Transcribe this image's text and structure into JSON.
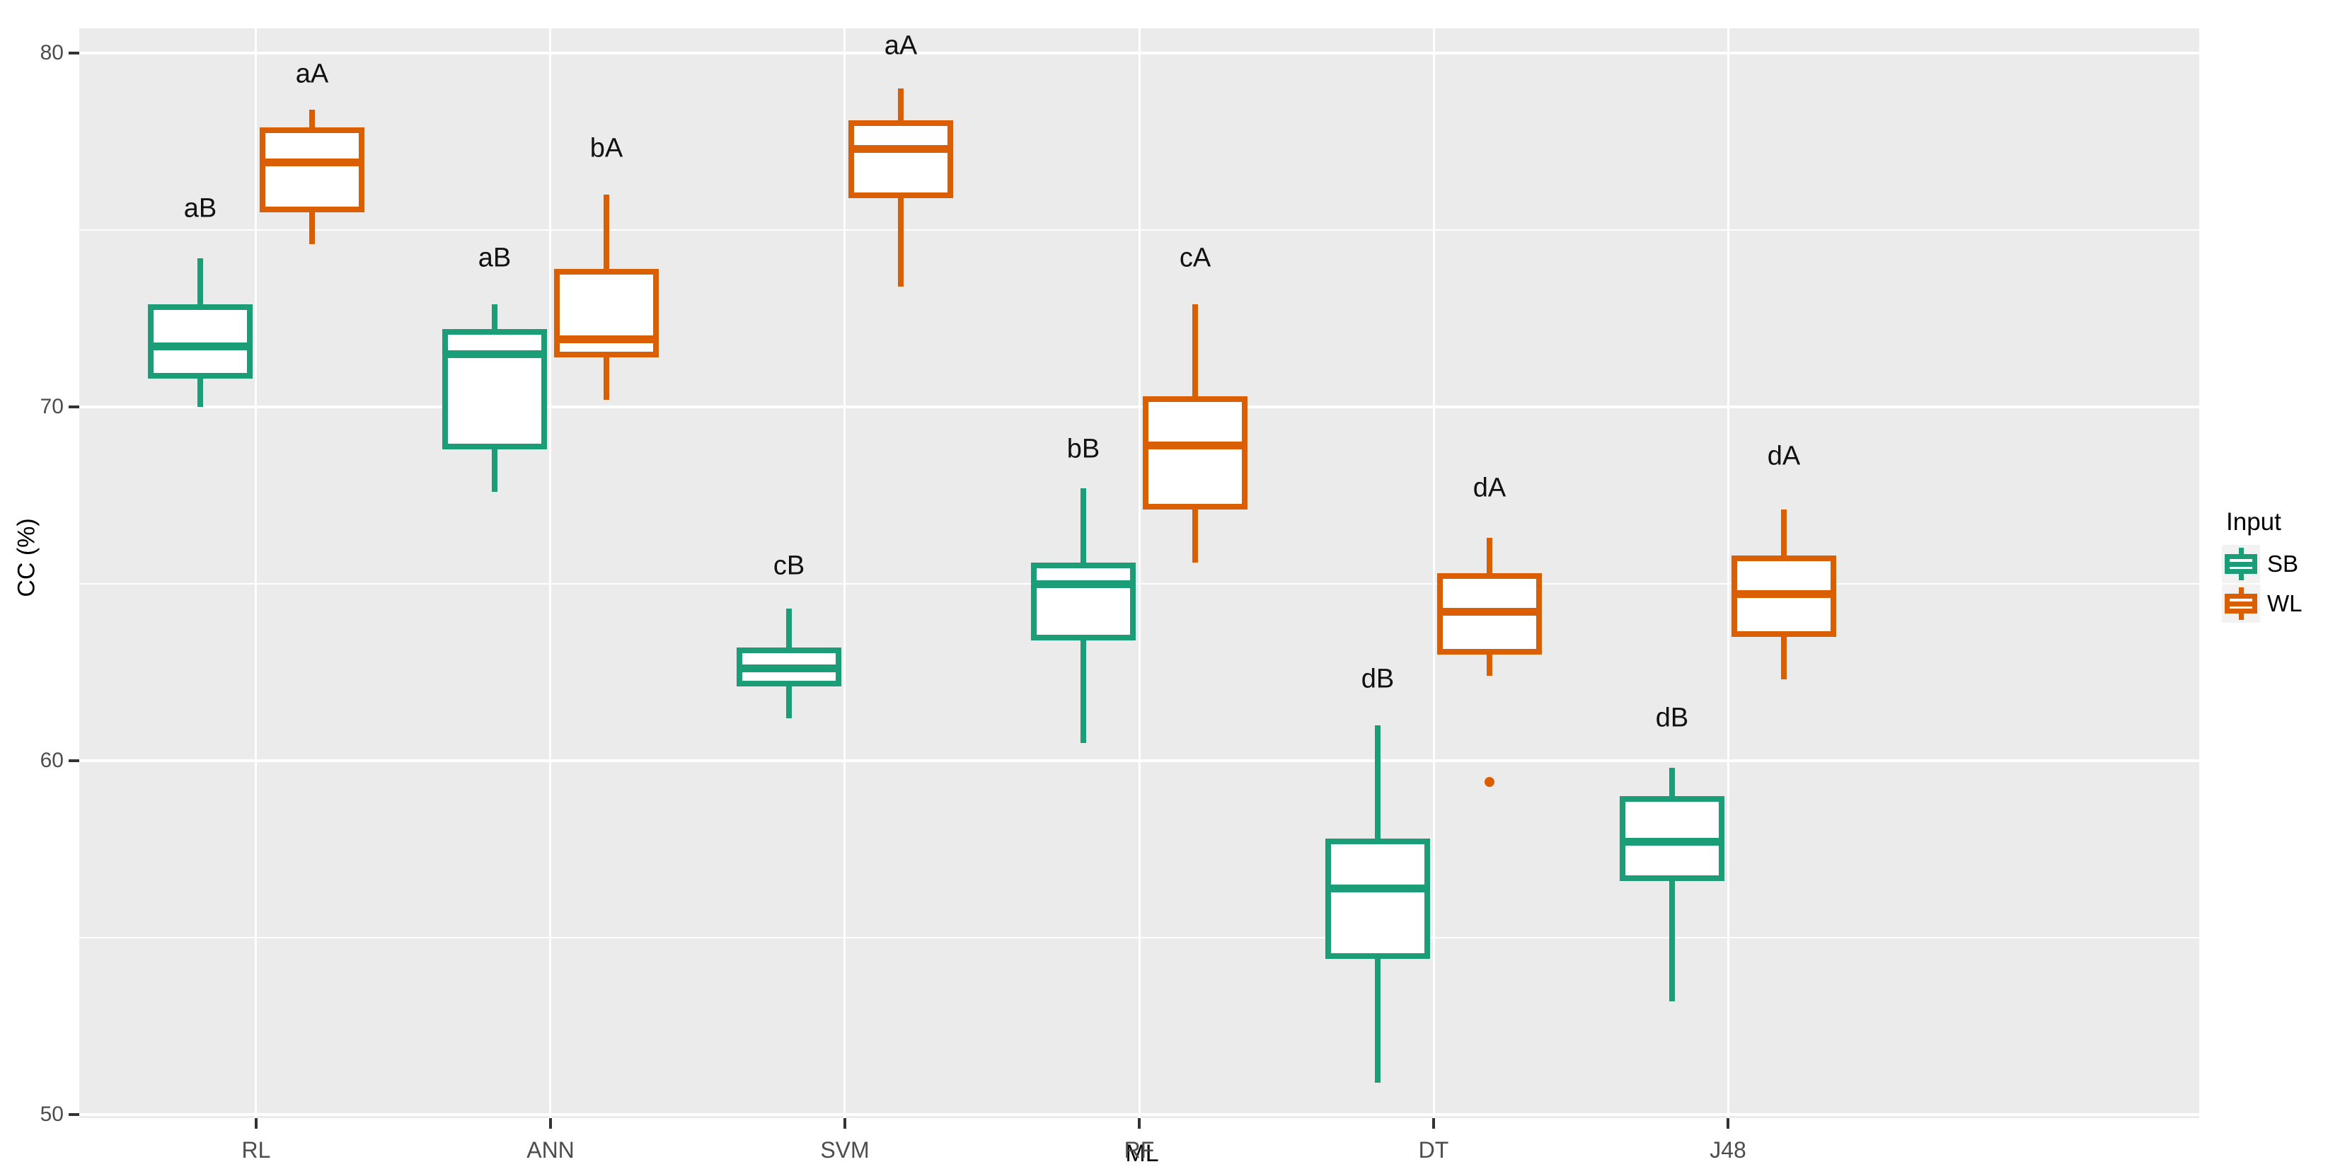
{
  "chart_data": {
    "type": "boxplot",
    "title": "",
    "xlabel": "ML",
    "ylabel": "CC (%)",
    "categories": [
      "RL",
      "ANN",
      "SVM",
      "RF",
      "DT",
      "J48"
    ],
    "y_ticks": [
      80,
      70,
      60,
      50
    ],
    "y_minor_ticks": [
      75,
      65,
      55
    ],
    "ylim": [
      49.9,
      80.7
    ],
    "grid": "on",
    "legend": {
      "title": "Input",
      "position": "right",
      "entries": [
        {
          "label": "SB",
          "color": "#1B9E77"
        },
        {
          "label": "WL",
          "color": "#D95F02"
        }
      ]
    },
    "series": [
      {
        "name": "SB",
        "color": "#1B9E77",
        "boxes": [
          {
            "category": "RL",
            "min": 70.0,
            "q1": 70.8,
            "median": 71.7,
            "q3": 72.9,
            "max": 74.2,
            "outliers": [],
            "sig": "aB",
            "sig_y": 75.6
          },
          {
            "category": "ANN",
            "min": 67.6,
            "q1": 68.8,
            "median": 71.5,
            "q3": 72.2,
            "max": 72.9,
            "outliers": [],
            "sig": "aB",
            "sig_y": 74.2
          },
          {
            "category": "SVM",
            "min": 61.2,
            "q1": 62.1,
            "median": 62.6,
            "q3": 63.2,
            "max": 64.3,
            "outliers": [],
            "sig": "cB",
            "sig_y": 65.5
          },
          {
            "category": "RF",
            "min": 60.5,
            "q1": 63.4,
            "median": 65.0,
            "q3": 65.6,
            "max": 67.7,
            "outliers": [],
            "sig": "bB",
            "sig_y": 68.8
          },
          {
            "category": "DT",
            "min": 50.9,
            "q1": 54.4,
            "median": 56.4,
            "q3": 57.8,
            "max": 61.0,
            "outliers": [],
            "sig": "dB",
            "sig_y": 62.3
          },
          {
            "category": "J48",
            "min": 53.2,
            "q1": 56.6,
            "median": 57.7,
            "q3": 59.0,
            "max": 59.8,
            "outliers": [],
            "sig": "dB",
            "sig_y": 61.2
          }
        ]
      },
      {
        "name": "WL",
        "color": "#D95F02",
        "boxes": [
          {
            "category": "RL",
            "min": 74.6,
            "q1": 75.5,
            "median": 76.9,
            "q3": 77.9,
            "max": 78.4,
            "outliers": [],
            "sig": "aA",
            "sig_y": 79.4
          },
          {
            "category": "ANN",
            "min": 70.2,
            "q1": 71.4,
            "median": 71.9,
            "q3": 73.9,
            "max": 76.0,
            "outliers": [],
            "sig": "bA",
            "sig_y": 77.3
          },
          {
            "category": "SVM",
            "min": 73.4,
            "q1": 75.9,
            "median": 77.3,
            "q3": 78.1,
            "max": 79.0,
            "outliers": [],
            "sig": "aA",
            "sig_y": 80.2
          },
          {
            "category": "RF",
            "min": 65.6,
            "q1": 67.1,
            "median": 68.9,
            "q3": 70.3,
            "max": 72.9,
            "outliers": [],
            "sig": "cA",
            "sig_y": 74.2
          },
          {
            "category": "DT",
            "min": 62.4,
            "q1": 63.0,
            "median": 64.2,
            "q3": 65.3,
            "max": 66.3,
            "outliers": [
              59.4
            ],
            "sig": "dA",
            "sig_y": 67.7
          },
          {
            "category": "J48",
            "min": 62.3,
            "q1": 63.5,
            "median": 64.7,
            "q3": 65.8,
            "max": 67.1,
            "outliers": [],
            "sig": "dA",
            "sig_y": 68.6
          }
        ]
      }
    ],
    "style": {
      "panel_bg": "#EBEBEB",
      "grid_color": "#FFFFFF",
      "tick_mark_color": "#333333",
      "tick_label_color": "#4D4D4D",
      "annotation_color": "#111111",
      "legend_key_bg": "#F2F2F2"
    }
  }
}
